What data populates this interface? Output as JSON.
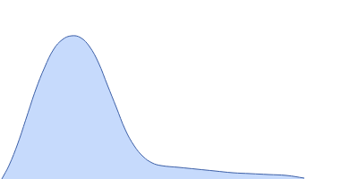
{
  "chart_data": {
    "type": "area",
    "x": [
      2,
      10,
      20,
      30,
      40,
      50,
      60,
      70,
      80,
      90,
      100,
      110,
      120,
      130,
      140,
      150,
      160,
      170,
      180,
      200,
      220,
      240,
      260,
      280,
      300,
      320,
      340
    ],
    "values": [
      0,
      15,
      40,
      70,
      100,
      125,
      145,
      156,
      160,
      158,
      148,
      130,
      105,
      80,
      55,
      37,
      25,
      18,
      15,
      13,
      11,
      9,
      7,
      6,
      5,
      4,
      1
    ],
    "color": "#c6dafc",
    "xlim": [
      0,
      400
    ],
    "ylim": [
      0,
      200
    ],
    "grid": false,
    "tick_labels": false
  }
}
